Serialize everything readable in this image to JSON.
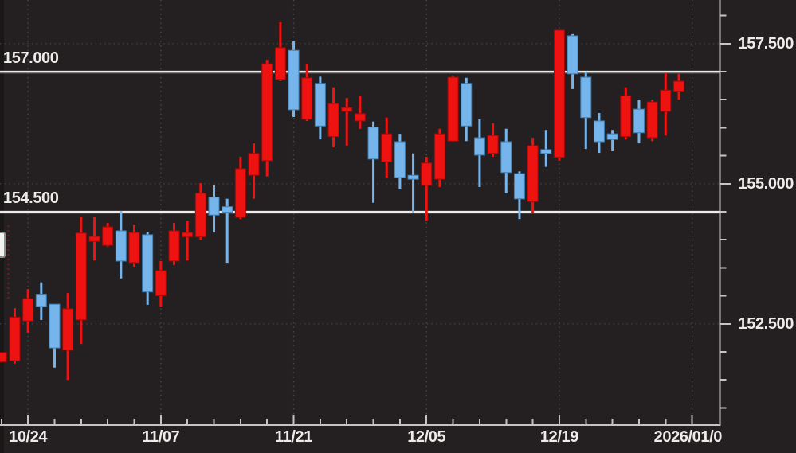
{
  "chart_data": {
    "type": "candlestick",
    "convention": "japanese (red = up / bullish, blue = down / bearish)",
    "interval": "daily",
    "title": "",
    "y_visible_range": [
      150.7,
      158.3
    ],
    "y_axis": {
      "side": "right",
      "tick_step": 0.5,
      "labels": [
        {
          "label": "157.500",
          "value": 157.5
        },
        {
          "label": "155.000",
          "value": 155.0
        },
        {
          "label": "152.500",
          "value": 152.5
        }
      ]
    },
    "x_axis": {
      "labels": [
        {
          "label": "10/24",
          "index": 2
        },
        {
          "label": "11/07",
          "index": 12
        },
        {
          "label": "11/21",
          "index": 22
        },
        {
          "label": "12/05",
          "index": 32
        },
        {
          "label": "12/19",
          "index": 42
        },
        {
          "label": "2026/01/0",
          "index": 52,
          "clipped": true
        }
      ]
    },
    "price_lines": [
      {
        "label": "157.000",
        "value": 157.0
      },
      {
        "label": "154.500",
        "value": 154.5
      }
    ],
    "candle_format": [
      "direction",
      "open",
      "high",
      "low",
      "close"
    ],
    "candles": [
      [
        "u",
        151.82,
        151.99,
        151.81,
        151.99
      ],
      [
        "u",
        151.84,
        152.78,
        151.79,
        152.62
      ],
      [
        "u",
        152.55,
        153.12,
        152.34,
        152.95
      ],
      [
        "d",
        153.03,
        153.24,
        152.57,
        152.81
      ],
      [
        "d",
        152.85,
        152.85,
        151.72,
        152.07
      ],
      [
        "u",
        152.03,
        153.05,
        151.5,
        152.77
      ],
      [
        "u",
        152.57,
        154.41,
        152.14,
        154.12
      ],
      [
        "u",
        153.97,
        154.41,
        153.63,
        154.06
      ],
      [
        "u",
        153.9,
        154.3,
        153.88,
        154.23
      ],
      [
        "d",
        154.16,
        154.51,
        153.31,
        153.62
      ],
      [
        "u",
        153.59,
        154.27,
        153.52,
        154.13
      ],
      [
        "d",
        154.09,
        154.13,
        152.84,
        153.07
      ],
      [
        "u",
        153.0,
        153.62,
        152.81,
        153.45
      ],
      [
        "u",
        153.62,
        154.3,
        153.55,
        154.16
      ],
      [
        "u",
        154.05,
        154.34,
        153.63,
        154.13
      ],
      [
        "u",
        154.05,
        155.01,
        153.99,
        154.83
      ],
      [
        "d",
        154.76,
        154.97,
        154.13,
        154.44
      ],
      [
        "d",
        154.59,
        154.73,
        153.59,
        154.49
      ],
      [
        "u",
        154.4,
        155.48,
        154.37,
        155.27
      ],
      [
        "u",
        155.15,
        155.72,
        154.73,
        155.54
      ],
      [
        "u",
        155.41,
        157.21,
        155.13,
        157.14
      ],
      [
        "u",
        156.86,
        157.88,
        156.83,
        157.43
      ],
      [
        "d",
        157.38,
        157.54,
        156.19,
        156.32
      ],
      [
        "u",
        156.15,
        157.14,
        156.12,
        156.89
      ],
      [
        "d",
        156.79,
        156.91,
        155.79,
        156.03
      ],
      [
        "u",
        155.84,
        156.72,
        155.65,
        156.43
      ],
      [
        "u",
        156.29,
        156.53,
        155.68,
        156.36
      ],
      [
        "u",
        156.12,
        156.57,
        155.98,
        156.25
      ],
      [
        "d",
        156.01,
        156.11,
        154.66,
        155.44
      ],
      [
        "u",
        155.39,
        156.18,
        155.11,
        155.89
      ],
      [
        "d",
        155.75,
        155.89,
        154.91,
        155.11
      ],
      [
        "d",
        155.15,
        155.54,
        154.49,
        155.08
      ],
      [
        "u",
        154.97,
        155.48,
        154.34,
        155.37
      ],
      [
        "u",
        155.08,
        155.98,
        154.94,
        155.89
      ],
      [
        "u",
        155.76,
        156.93,
        155.75,
        156.9
      ],
      [
        "d",
        156.79,
        156.89,
        155.76,
        156.03
      ],
      [
        "d",
        155.82,
        156.15,
        154.94,
        155.51
      ],
      [
        "u",
        155.54,
        156.08,
        155.48,
        155.86
      ],
      [
        "d",
        155.75,
        155.98,
        154.83,
        155.2
      ],
      [
        "d",
        155.18,
        155.22,
        154.37,
        154.73
      ],
      [
        "u",
        154.68,
        155.82,
        154.47,
        155.68
      ],
      [
        "d",
        155.61,
        155.96,
        155.3,
        155.54
      ],
      [
        "u",
        155.47,
        157.74,
        155.41,
        157.74
      ],
      [
        "d",
        157.64,
        157.67,
        156.69,
        156.96
      ],
      [
        "d",
        156.9,
        157.0,
        155.62,
        156.18
      ],
      [
        "d",
        156.12,
        156.26,
        155.55,
        155.75
      ],
      [
        "d",
        155.89,
        155.96,
        155.58,
        155.79
      ],
      [
        "u",
        155.84,
        156.72,
        155.79,
        156.57
      ],
      [
        "d",
        156.33,
        156.5,
        155.72,
        155.91
      ],
      [
        "u",
        155.82,
        156.5,
        155.76,
        156.46
      ],
      [
        "u",
        156.29,
        156.97,
        155.86,
        156.67
      ],
      [
        "u",
        156.65,
        156.96,
        156.5,
        156.83
      ]
    ],
    "markers": {
      "left_price_flag_visible": true,
      "left_dotted_marker_visible": true
    }
  },
  "ui": {
    "colors": {
      "background": "#242021",
      "up": "#ee1211",
      "up_border": "#a30808",
      "down": "#76b5ec",
      "down_border": "#3d7fb5",
      "grid": "#6a6a6a",
      "axis": "#c4c4c4",
      "price_line": "#ececec",
      "text": "#edecea",
      "flag_fill": "#f3f3f3",
      "marker_red": "#7e1f1f"
    }
  }
}
